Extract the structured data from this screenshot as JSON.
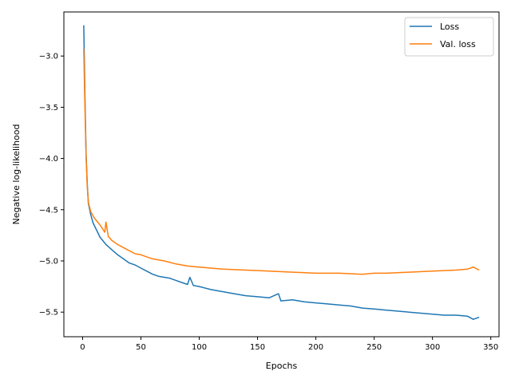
{
  "chart_data": {
    "type": "line",
    "title": "",
    "xlabel": "Epochs",
    "ylabel": "Negative log-likelihood",
    "xlim": [
      -16.05,
      357.05
    ],
    "ylim": [
      -5.74,
      -2.57
    ],
    "xticks": [
      0,
      50,
      100,
      150,
      200,
      250,
      300,
      350
    ],
    "yticks": [
      -3.0,
      -3.5,
      -4.0,
      -4.5,
      -5.0,
      -5.5
    ],
    "ytick_labels": [
      "−3.0",
      "−3.5",
      "−4.0",
      "−4.5",
      "−5.0",
      "−5.5"
    ],
    "grid": false,
    "legend_position": "top-right",
    "series": [
      {
        "name": "Loss",
        "color": "#1f77b4",
        "points": [
          [
            1,
            -2.7
          ],
          [
            2,
            -3.4
          ],
          [
            3,
            -3.95
          ],
          [
            4,
            -4.25
          ],
          [
            5,
            -4.44
          ],
          [
            7,
            -4.55
          ],
          [
            9,
            -4.63
          ],
          [
            12,
            -4.7
          ],
          [
            15,
            -4.77
          ],
          [
            20,
            -4.84
          ],
          [
            25,
            -4.89
          ],
          [
            30,
            -4.94
          ],
          [
            35,
            -4.98
          ],
          [
            40,
            -5.02
          ],
          [
            45,
            -5.04
          ],
          [
            50,
            -5.07
          ],
          [
            55,
            -5.1
          ],
          [
            60,
            -5.13
          ],
          [
            65,
            -5.15
          ],
          [
            70,
            -5.16
          ],
          [
            75,
            -5.17
          ],
          [
            80,
            -5.19
          ],
          [
            85,
            -5.21
          ],
          [
            90,
            -5.23
          ],
          [
            92,
            -5.16
          ],
          [
            95,
            -5.24
          ],
          [
            100,
            -5.25
          ],
          [
            110,
            -5.28
          ],
          [
            120,
            -5.3
          ],
          [
            130,
            -5.32
          ],
          [
            140,
            -5.34
          ],
          [
            150,
            -5.35
          ],
          [
            160,
            -5.36
          ],
          [
            168,
            -5.32
          ],
          [
            170,
            -5.39
          ],
          [
            180,
            -5.38
          ],
          [
            190,
            -5.4
          ],
          [
            200,
            -5.41
          ],
          [
            210,
            -5.42
          ],
          [
            220,
            -5.43
          ],
          [
            230,
            -5.44
          ],
          [
            240,
            -5.46
          ],
          [
            250,
            -5.47
          ],
          [
            260,
            -5.48
          ],
          [
            270,
            -5.49
          ],
          [
            280,
            -5.5
          ],
          [
            290,
            -5.51
          ],
          [
            300,
            -5.52
          ],
          [
            310,
            -5.53
          ],
          [
            320,
            -5.53
          ],
          [
            330,
            -5.54
          ],
          [
            335,
            -5.57
          ],
          [
            340,
            -5.55
          ]
        ]
      },
      {
        "name": "Val. loss",
        "color": "#ff7f0e",
        "points": [
          [
            1,
            -2.93
          ],
          [
            2,
            -3.5
          ],
          [
            3,
            -3.98
          ],
          [
            4,
            -4.28
          ],
          [
            5,
            -4.43
          ],
          [
            7,
            -4.52
          ],
          [
            10,
            -4.58
          ],
          [
            15,
            -4.65
          ],
          [
            19,
            -4.72
          ],
          [
            20,
            -4.62
          ],
          [
            22,
            -4.76
          ],
          [
            25,
            -4.8
          ],
          [
            30,
            -4.84
          ],
          [
            35,
            -4.87
          ],
          [
            40,
            -4.9
          ],
          [
            45,
            -4.93
          ],
          [
            50,
            -4.94
          ],
          [
            55,
            -4.96
          ],
          [
            60,
            -4.98
          ],
          [
            70,
            -5.0
          ],
          [
            80,
            -5.03
          ],
          [
            90,
            -5.05
          ],
          [
            100,
            -5.06
          ],
          [
            110,
            -5.07
          ],
          [
            120,
            -5.08
          ],
          [
            140,
            -5.09
          ],
          [
            160,
            -5.1
          ],
          [
            180,
            -5.11
          ],
          [
            200,
            -5.12
          ],
          [
            220,
            -5.12
          ],
          [
            240,
            -5.13
          ],
          [
            250,
            -5.12
          ],
          [
            260,
            -5.12
          ],
          [
            280,
            -5.11
          ],
          [
            300,
            -5.1
          ],
          [
            320,
            -5.09
          ],
          [
            330,
            -5.08
          ],
          [
            335,
            -5.06
          ],
          [
            340,
            -5.09
          ]
        ]
      }
    ]
  }
}
